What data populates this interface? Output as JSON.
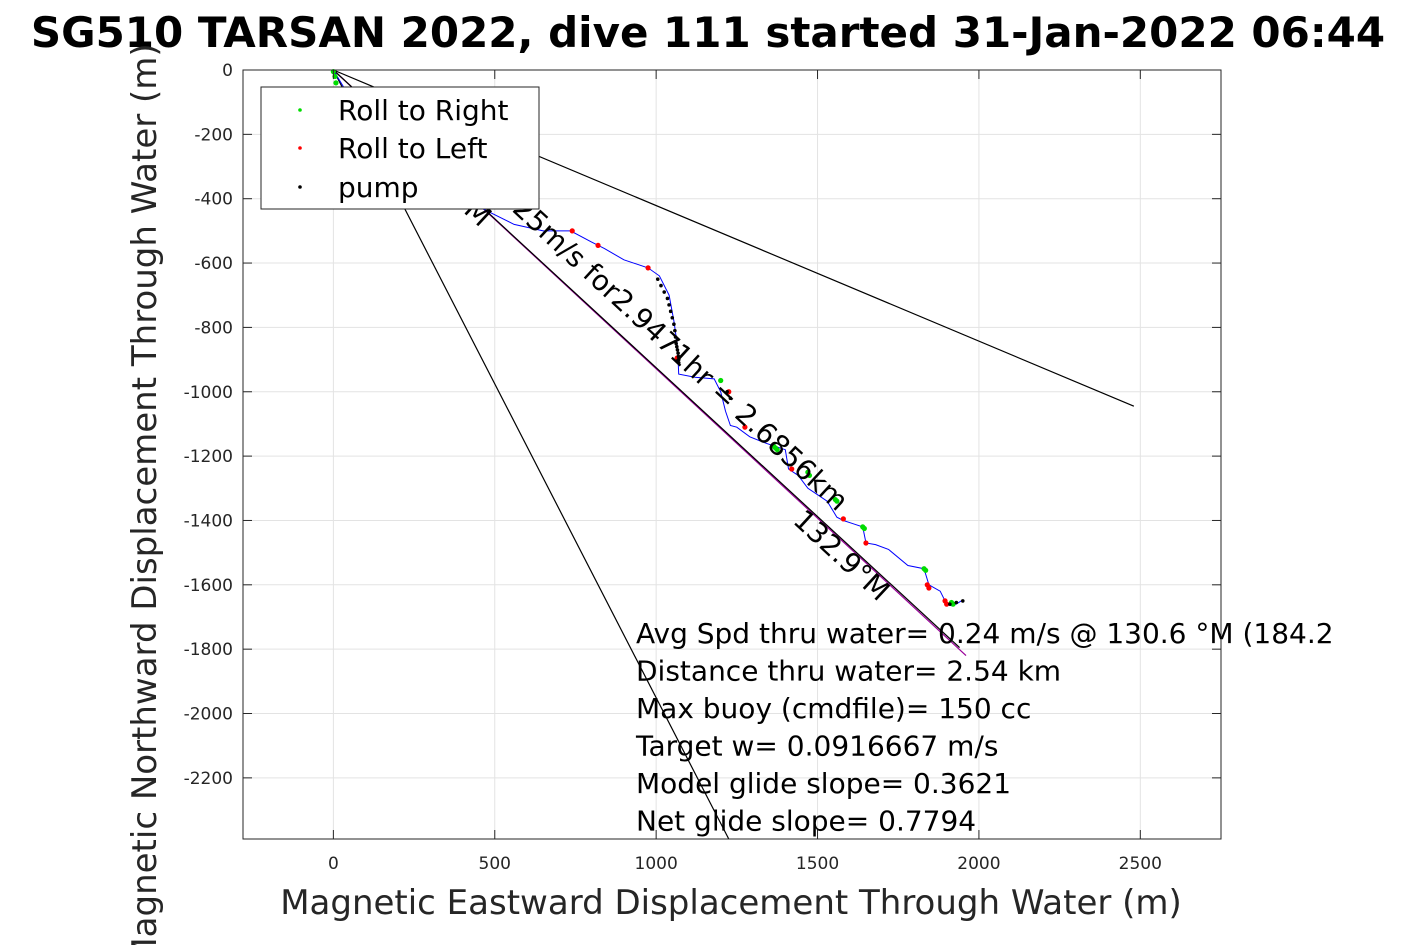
{
  "chart_data": {
    "type": "line",
    "title": "SG510 TARSAN 2022, dive 111 started 31-Jan-2022 06:44",
    "xlabel": "Magnetic Eastward Displacement Through Water (m)",
    "ylabel": "Magnetic Northward Displacement Through Water (m)",
    "xlim": [
      -280,
      2750
    ],
    "ylim": [
      -2390,
      0
    ],
    "xticks": [
      0,
      500,
      1000,
      1500,
      2000,
      2500
    ],
    "xtick_labels": [
      "0",
      "500",
      "1000",
      "1500",
      "2000",
      "2500"
    ],
    "yticks": [
      0,
      -200,
      -400,
      -600,
      -800,
      -1000,
      -1200,
      -1400,
      -1600,
      -1800,
      -2000,
      -2200
    ],
    "ytick_labels": [
      "0",
      "-200",
      "-400",
      "-600",
      "-800",
      "-1000",
      "-1200",
      "-1400",
      "-1600",
      "-1800",
      "-2000",
      "-2200"
    ],
    "grid": true,
    "legend": {
      "location": "top-left",
      "entries": [
        {
          "label": "Roll to Right",
          "color": "#00dd00",
          "marker": "dot"
        },
        {
          "label": "Roll to Left",
          "color": "#ff0000",
          "marker": "dot"
        },
        {
          "label": "pump",
          "color": "#000000",
          "marker": "dot"
        }
      ]
    },
    "track": {
      "name": "track",
      "color": "#0000ff",
      "x": [
        0,
        60,
        150,
        280,
        420,
        560,
        650,
        735,
        800,
        840,
        900,
        975,
        1010,
        1040,
        1055,
        1065,
        1068,
        1070,
        1120,
        1180,
        1200,
        1215,
        1230,
        1250,
        1290,
        1340,
        1370,
        1400,
        1410,
        1440,
        1470,
        1500,
        1530,
        1560,
        1580,
        1610,
        1640,
        1650,
        1680,
        1720,
        1780,
        1830,
        1845,
        1880,
        1900,
        1915,
        1930,
        1945
      ],
      "y": [
        0,
        -100,
        -200,
        -310,
        -410,
        -480,
        -500,
        -500,
        -535,
        -555,
        -590,
        -615,
        -640,
        -700,
        -780,
        -850,
        -900,
        -945,
        -955,
        -960,
        -1000,
        -1060,
        -1105,
        -1110,
        -1140,
        -1160,
        -1170,
        -1180,
        -1240,
        -1260,
        -1300,
        -1320,
        -1340,
        -1390,
        -1400,
        -1410,
        -1420,
        -1470,
        -1475,
        -1490,
        -1540,
        -1550,
        -1600,
        -1620,
        -1660,
        -1665,
        -1660,
        -1650
      ]
    },
    "roll_right": {
      "color": "#00dd00",
      "x": [
        0,
        5,
        8,
        12,
        1200,
        1365,
        1370,
        1375,
        1470,
        1475,
        1555,
        1560,
        1640,
        1645,
        1830,
        1835,
        1915,
        1920
      ],
      "y": [
        -5,
        -20,
        -40,
        -60,
        -965,
        -1170,
        -1175,
        -1180,
        -1250,
        -1260,
        -1335,
        -1340,
        -1420,
        -1425,
        -1550,
        -1555,
        -1655,
        -1660
      ]
    },
    "roll_left": {
      "color": "#ff0000",
      "x": [
        740,
        820,
        975,
        1065,
        1225,
        1275,
        1420,
        1580,
        1650,
        1840,
        1845,
        1895,
        1900
      ],
      "y": [
        -500,
        -545,
        -615,
        -895,
        -1000,
        -1110,
        -1240,
        -1395,
        -1470,
        -1600,
        -1610,
        -1650,
        -1660
      ]
    },
    "pump": {
      "color": "#000000",
      "x": [
        1005,
        1015,
        1025,
        1035,
        1040,
        1045,
        1050,
        1055,
        1058,
        1060,
        1062,
        1064,
        1066,
        1068,
        1069,
        1070,
        1070,
        1220,
        1230,
        1910,
        1930,
        1950
      ],
      "y": [
        -650,
        -670,
        -690,
        -710,
        -730,
        -750,
        -770,
        -790,
        -810,
        -830,
        -850,
        -860,
        -870,
        -880,
        -890,
        -900,
        -910,
        -1000,
        -1020,
        -1660,
        -1655,
        -1650
      ]
    },
    "reference_lines": [
      {
        "name": "magenta heading line",
        "color": "#990099",
        "x": [
          0,
          1960
        ],
        "y": [
          0,
          -1820
        ]
      },
      {
        "name": "black heading line",
        "color": "#000000",
        "x": [
          0,
          1940
        ],
        "y": [
          0,
          -1795
        ]
      },
      {
        "name": "upper bound line",
        "color": "#000000",
        "x": [
          0,
          2480
        ],
        "y": [
          0,
          -1045
        ]
      },
      {
        "name": "lower bound line",
        "color": "#000000",
        "x": [
          0,
          1225
        ],
        "y": [
          0,
          -2390
        ]
      }
    ],
    "annotations": {
      "rotated_label": "0.25m/s for2.9471hr = 2.6856km",
      "heading_label": "132.9°M",
      "m_fragment": "M",
      "summary_lines": [
        "Avg Spd thru water=  0.24 m/s @ 130.6 °M (184.2",
        "Distance thru water=  2.54 km",
        "Max buoy (cmdfile)= 150 cc",
        "Target w= 0.0916667 m/s",
        "Model glide slope= 0.3621",
        "Net glide slope= 0.7794"
      ]
    }
  }
}
